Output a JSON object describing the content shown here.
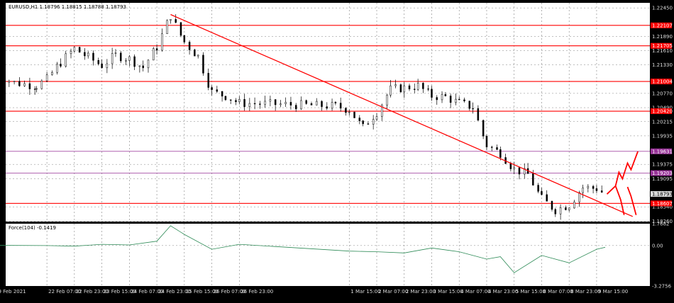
{
  "header": {
    "symbol_line": "EURUSD,H1  1.18796 1.18815 1.18788 1.18793",
    "indicator_title": "Force(104) -0.1419"
  },
  "colors": {
    "background": "#ffffff",
    "frame": "#000000",
    "grid": "#808080",
    "candle": "#000000",
    "trendline": "#ff0000",
    "level_line": "#ff0000",
    "purple_level": "#993399",
    "blue_level": "#0000cc",
    "pink_level": "#ff66cc",
    "gray_dash": "#808080",
    "force_line": "#2e8b57",
    "price_tag_red": "#ff0000",
    "price_tag_purple": "#993399",
    "current_price_tag": "#d9d9d9"
  },
  "chart_data": [
    {
      "type": "candlestick",
      "symbol": "EURUSD",
      "timeframe": "H1",
      "ohlc_header": {
        "open": 1.18796,
        "high": 1.18815,
        "low": 1.18788,
        "close": 1.18793
      },
      "ylim": [
        1.1825,
        1.2255
      ],
      "y_ticks": [
        "1.22450",
        "1.21890",
        "1.21610",
        "1.21330",
        "1.20770",
        "1.20490",
        "1.20215",
        "1.19935",
        "1.19375",
        "1.19095",
        "1.18540",
        "1.18260"
      ],
      "x_ticks": [
        "19 Feb 2021",
        "22 Feb 07:00",
        "22 Feb 23:00",
        "23 Feb 15:00",
        "24 Feb 07:00",
        "24 Feb 23:00",
        "25 Feb 15:00",
        "26 Feb 07:00",
        "26 Feb 23:00",
        "1 Mar 15:00",
        "2 Mar 07:00",
        "2 Mar 23:00",
        "3 Mar 15:00",
        "4 Mar 07:00",
        "4 Mar 23:00",
        "5 Mar 15:00",
        "8 Mar 07:00",
        "8 Mar 23:00",
        "9 Mar 15:00"
      ],
      "horizontal_levels": [
        {
          "price": 1.22107,
          "label": "1.22107",
          "color": "red"
        },
        {
          "price": 1.21705,
          "label": "1.21705",
          "color": "red"
        },
        {
          "price": 1.21004,
          "label": "1.21004",
          "color": "red"
        },
        {
          "price": 1.2042,
          "label": "1.20420",
          "color": "red"
        },
        {
          "price": 1.19631,
          "label": "1.19631",
          "color": "purple"
        },
        {
          "price": 1.19203,
          "label": "1.19203",
          "color": "purple"
        },
        {
          "price": 1.18607,
          "label": "1.18607",
          "color": "red"
        }
      ],
      "current_price": {
        "price": 1.18793,
        "label": "1.18793"
      },
      "trendline": {
        "from": {
          "x": "25 Feb 07:00",
          "y": 1.2232
        },
        "to": {
          "x": "10 Mar 12:00",
          "y": 1.1835
        }
      },
      "close_path": [
        [
          "19 Feb 2021",
          1.2115
        ],
        [
          "19 Feb 12:00",
          1.2098
        ],
        [
          "22 Feb 01:00",
          1.2092
        ],
        [
          "22 Feb 07:00",
          1.2105
        ],
        [
          "22 Feb 15:00",
          1.2138
        ],
        [
          "22 Feb 23:00",
          1.2165
        ],
        [
          "23 Feb 07:00",
          1.2148
        ],
        [
          "23 Feb 15:00",
          1.2132
        ],
        [
          "23 Feb 23:00",
          1.2152
        ],
        [
          "24 Feb 07:00",
          1.2145
        ],
        [
          "24 Feb 15:00",
          1.2128
        ],
        [
          "24 Feb 23:00",
          1.2168
        ],
        [
          "25 Feb 07:00",
          1.223
        ],
        [
          "25 Feb 15:00",
          1.2178
        ],
        [
          "25 Feb 23:00",
          1.215
        ],
        [
          "26 Feb 07:00",
          1.208
        ],
        [
          "26 Feb 15:00",
          1.2072
        ],
        [
          "26 Feb 23:00",
          1.2058
        ],
        [
          "1 Mar 07:00",
          1.2052
        ],
        [
          "1 Mar 15:00",
          1.2045
        ],
        [
          "1 Mar 23:00",
          1.201
        ],
        [
          "2 Mar 07:00",
          1.204
        ],
        [
          "2 Mar 15:00",
          1.2085
        ],
        [
          "2 Mar 23:00",
          1.2088
        ],
        [
          "3 Mar 07:00",
          1.2092
        ],
        [
          "3 Mar 15:00",
          1.2072
        ],
        [
          "3 Mar 23:00",
          1.207
        ],
        [
          "4 Mar 07:00",
          1.2058
        ],
        [
          "4 Mar 15:00",
          1.205
        ],
        [
          "4 Mar 23:00",
          1.1975
        ],
        [
          "5 Mar 07:00",
          1.196
        ],
        [
          "5 Mar 15:00",
          1.1928
        ],
        [
          "5 Mar 23:00",
          1.1918
        ],
        [
          "8 Mar 07:00",
          1.187
        ],
        [
          "8 Mar 15:00",
          1.1848
        ],
        [
          "8 Mar 23:00",
          1.1858
        ],
        [
          "9 Mar 07:00",
          1.1892
        ],
        [
          "9 Mar 15:00",
          1.189
        ],
        [
          "9 Mar 20:00",
          1.1879
        ]
      ],
      "projection_paths": [
        [
          [
            "9 Mar 21:00",
            1.1879
          ],
          [
            "10 Mar 02:00",
            1.1895
          ],
          [
            "10 Mar 04:00",
            1.1922
          ],
          [
            "10 Mar 06:00",
            1.1909
          ],
          [
            "10 Mar 09:00",
            1.194
          ],
          [
            "10 Mar 11:00",
            1.1927
          ],
          [
            "10 Mar 15:00",
            1.1963
          ]
        ],
        [
          [
            "10 Mar 02:00",
            1.1895
          ],
          [
            "10 Mar 05:00",
            1.1868
          ],
          [
            "10 Mar 07:00",
            1.1838
          ]
        ],
        [
          [
            "10 Mar 09:00",
            1.1893
          ],
          [
            "10 Mar 11:00",
            1.1875
          ],
          [
            "10 Mar 14:00",
            1.1838
          ]
        ]
      ]
    },
    {
      "type": "line",
      "name": "Force(104)",
      "value": -0.1419,
      "ylim": [
        -3.2756,
        1.7682
      ],
      "y_ticks": [
        "1.7682",
        "0.00",
        "-3.2756"
      ],
      "x": [
        "19 Feb 2021",
        "22 Feb 07:00",
        "22 Feb 23:00",
        "23 Feb 15:00",
        "24 Feb 07:00",
        "24 Feb 23:00",
        "25 Feb 07:00",
        "25 Feb 15:00",
        "26 Feb 07:00",
        "26 Feb 23:00",
        "1 Mar 15:00",
        "2 Mar 07:00",
        "2 Mar 23:00",
        "3 Mar 15:00",
        "4 Mar 07:00",
        "4 Mar 23:00",
        "5 Mar 07:00",
        "5 Mar 15:00",
        "8 Mar 07:00",
        "8 Mar 23:00",
        "9 Mar 15:00",
        "9 Mar 20:00"
      ],
      "values": [
        0.02,
        0.0,
        -0.05,
        0.1,
        0.05,
        0.35,
        1.6,
        0.9,
        -0.3,
        0.1,
        -0.45,
        -0.5,
        -0.6,
        -0.2,
        -0.5,
        -1.1,
        -0.9,
        -2.2,
        -0.8,
        -1.4,
        -0.3,
        -0.14
      ]
    }
  ]
}
